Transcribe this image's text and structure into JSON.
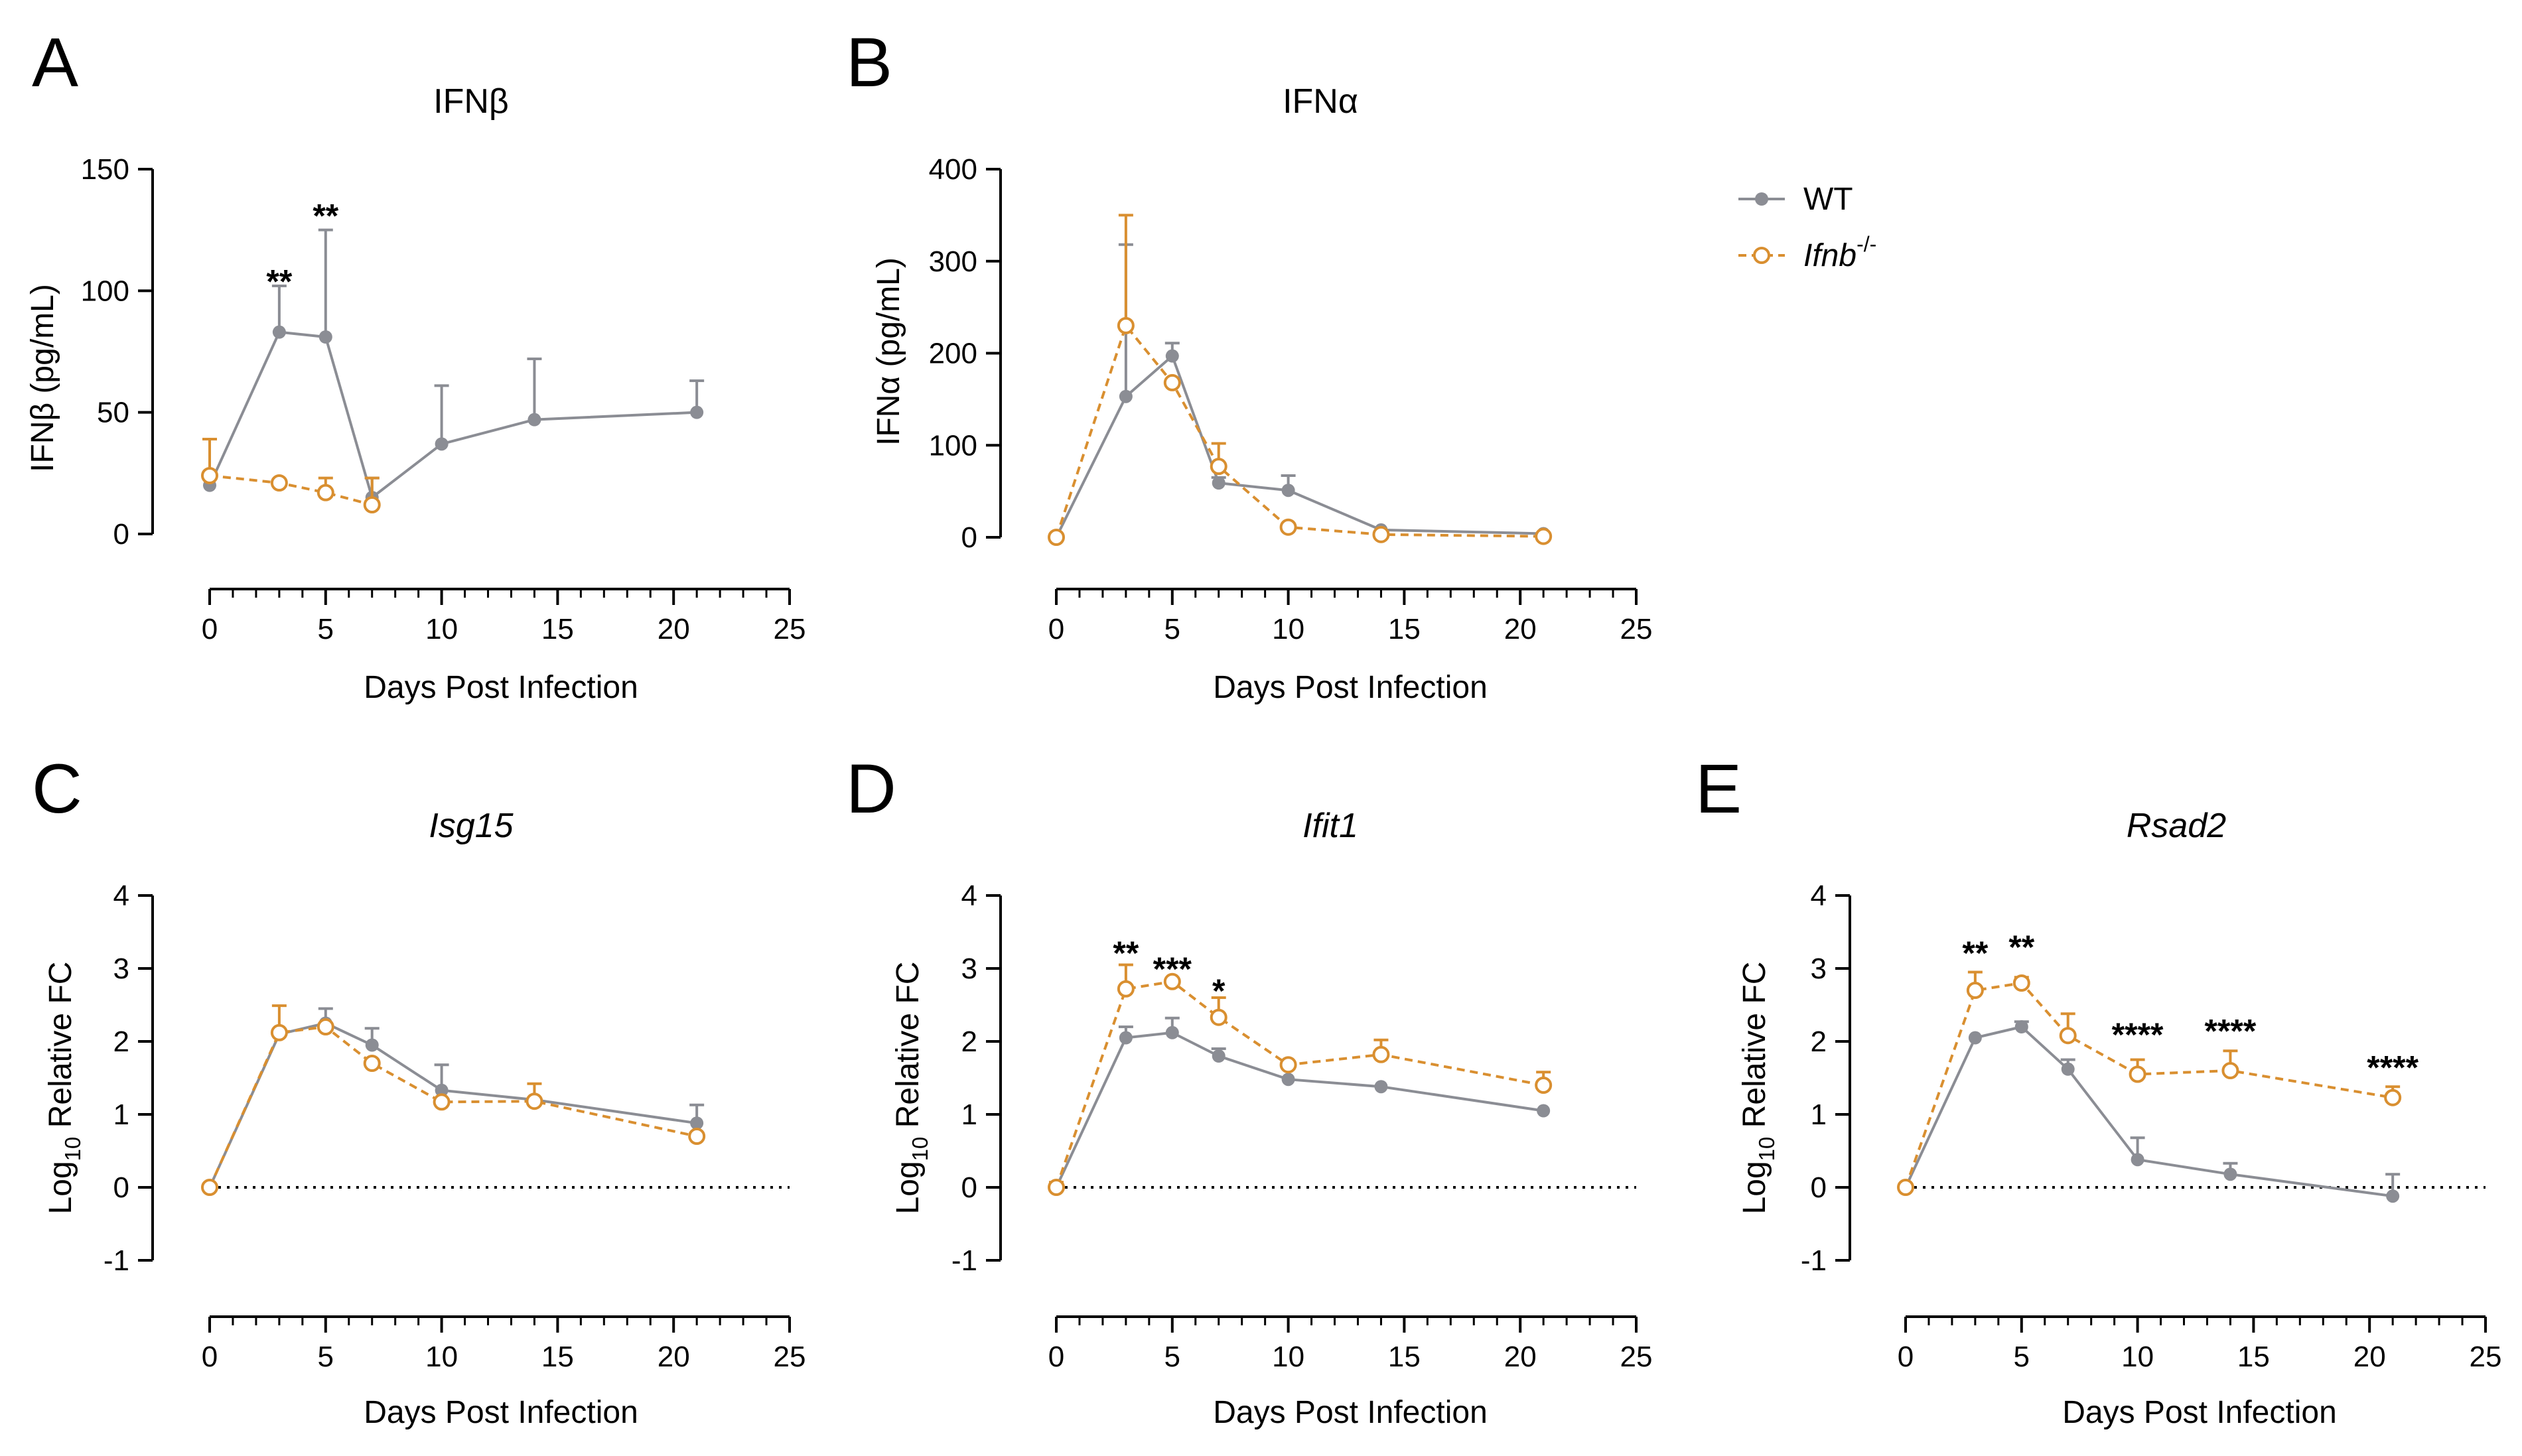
{
  "colors": {
    "wt": "#8b8d94",
    "ko": "#d98f30",
    "axis": "#000000"
  },
  "legend": {
    "wt_label": "WT",
    "ko_gene": "Ifnb",
    "ko_sup": "-/-"
  },
  "chart_data": [
    {
      "type": "line",
      "panel": "A",
      "title": "IFNβ",
      "title_italic": false,
      "xlabel": "Days Post Infection",
      "ylabel": "IFNβ (pg/mL)",
      "xlim": [
        0,
        25
      ],
      "ylim": [
        0,
        150
      ],
      "xticks": [
        0,
        5,
        10,
        15,
        20,
        25
      ],
      "yticks": [
        0,
        50,
        100,
        150
      ],
      "grid": false,
      "series": [
        {
          "name": "WT",
          "key": "wt",
          "x": [
            0,
            3,
            5,
            7,
            10,
            14,
            21
          ],
          "y": [
            20,
            83,
            81,
            15,
            37,
            47,
            50
          ],
          "err": [
            0,
            19,
            44,
            8,
            24,
            25,
            13
          ]
        },
        {
          "name": "Ifnb-/-",
          "key": "ko",
          "x": [
            0,
            3,
            5,
            7
          ],
          "y": [
            24,
            21,
            17,
            12
          ],
          "err": [
            15,
            0,
            6,
            11
          ]
        }
      ],
      "annotations": [
        {
          "x": 3,
          "y": 104,
          "text": "**"
        },
        {
          "x": 5,
          "y": 131,
          "text": "**"
        }
      ]
    },
    {
      "type": "line",
      "panel": "B",
      "title": "IFNα",
      "title_italic": false,
      "xlabel": "Days Post Infection",
      "ylabel": "IFNα (pg/mL)",
      "xlim": [
        0,
        25
      ],
      "ylim": [
        0,
        400
      ],
      "xticks": [
        0,
        5,
        10,
        15,
        20,
        25
      ],
      "yticks": [
        0,
        100,
        200,
        300,
        400
      ],
      "grid": false,
      "series": [
        {
          "name": "WT",
          "key": "wt",
          "x": [
            0,
            3,
            5,
            7,
            10,
            14,
            21
          ],
          "y": [
            0,
            153,
            197,
            59,
            51,
            8,
            4
          ],
          "err": [
            0,
            165,
            14,
            6,
            16,
            0,
            0
          ]
        },
        {
          "name": "Ifnb-/-",
          "key": "ko",
          "x": [
            0,
            3,
            5,
            7,
            10,
            14,
            21
          ],
          "y": [
            0,
            230,
            168,
            77,
            11,
            3,
            1
          ],
          "err": [
            0,
            120,
            0,
            25,
            0,
            0,
            0
          ]
        }
      ],
      "annotations": []
    },
    {
      "type": "line",
      "panel": "C",
      "title": "Isg15",
      "title_italic": true,
      "xlabel": "Days Post Infection",
      "ylabel_base": "Log",
      "ylabel_sub": "10",
      "ylabel_rest": " Relative FC",
      "xlim": [
        0,
        25
      ],
      "ylim": [
        -1,
        4
      ],
      "xticks": [
        0,
        5,
        10,
        15,
        20,
        25
      ],
      "yticks": [
        -1,
        0,
        1,
        2,
        3,
        4
      ],
      "zero_line": true,
      "grid": false,
      "series": [
        {
          "name": "WT",
          "key": "wt",
          "x": [
            0,
            3,
            5,
            7,
            10,
            14,
            21
          ],
          "y": [
            0,
            2.1,
            2.25,
            1.95,
            1.33,
            1.2,
            0.88
          ],
          "err": [
            0,
            0,
            0.2,
            0.23,
            0.35,
            0,
            0.25
          ]
        },
        {
          "name": "Ifnb-/-",
          "key": "ko",
          "x": [
            0,
            3,
            5,
            7,
            10,
            14,
            21
          ],
          "y": [
            0,
            2.12,
            2.2,
            1.7,
            1.17,
            1.18,
            0.7
          ],
          "err": [
            0,
            0.37,
            0,
            0,
            0,
            0.24,
            0
          ]
        }
      ],
      "annotations": []
    },
    {
      "type": "line",
      "panel": "D",
      "title": "Ifit1",
      "title_italic": true,
      "xlabel": "Days Post Infection",
      "ylabel_base": "Log",
      "ylabel_sub": "10",
      "ylabel_rest": " Relative FC",
      "xlim": [
        0,
        25
      ],
      "ylim": [
        -1,
        4
      ],
      "xticks": [
        0,
        5,
        10,
        15,
        20,
        25
      ],
      "yticks": [
        -1,
        0,
        1,
        2,
        3,
        4
      ],
      "zero_line": true,
      "grid": false,
      "series": [
        {
          "name": "WT",
          "key": "wt",
          "x": [
            0,
            3,
            5,
            7,
            10,
            14,
            21
          ],
          "y": [
            0,
            2.05,
            2.12,
            1.8,
            1.48,
            1.38,
            1.05
          ],
          "err": [
            0,
            0.15,
            0.2,
            0.1,
            0,
            0,
            0
          ]
        },
        {
          "name": "Ifnb-/-",
          "key": "ko",
          "x": [
            0,
            3,
            5,
            7,
            10,
            14,
            21
          ],
          "y": [
            0,
            2.72,
            2.82,
            2.33,
            1.68,
            1.82,
            1.4
          ],
          "err": [
            0.07,
            0.33,
            0,
            0.27,
            0,
            0.2,
            0.18
          ]
        }
      ],
      "annotations": [
        {
          "x": 3,
          "y": 3.22,
          "text": "**"
        },
        {
          "x": 5,
          "y": 3.0,
          "text": "***"
        },
        {
          "x": 7,
          "y": 2.7,
          "text": "*"
        }
      ]
    },
    {
      "type": "line",
      "panel": "E",
      "title": "Rsad2",
      "title_italic": true,
      "xlabel": "Days Post Infection",
      "ylabel_base": "Log",
      "ylabel_sub": "10",
      "ylabel_rest": " Relative FC",
      "xlim": [
        0,
        25
      ],
      "ylim": [
        -1,
        4
      ],
      "xticks": [
        0,
        5,
        10,
        15,
        20,
        25
      ],
      "yticks": [
        -1,
        0,
        1,
        2,
        3,
        4
      ],
      "zero_line": true,
      "grid": false,
      "series": [
        {
          "name": "WT",
          "key": "wt",
          "x": [
            0,
            3,
            5,
            7,
            10,
            14,
            21
          ],
          "y": [
            0,
            2.05,
            2.2,
            1.62,
            0.38,
            0.18,
            -0.12
          ],
          "err": [
            0,
            0,
            0.07,
            0.13,
            0.3,
            0.15,
            0.3
          ]
        },
        {
          "name": "Ifnb-/-",
          "key": "ko",
          "x": [
            0,
            3,
            5,
            7,
            10,
            14,
            21
          ],
          "y": [
            0,
            2.7,
            2.8,
            2.08,
            1.55,
            1.6,
            1.23
          ],
          "err": [
            0,
            0.25,
            0.08,
            0.3,
            0.2,
            0.27,
            0.15
          ]
        }
      ],
      "annotations": [
        {
          "x": 3,
          "y": 3.22,
          "text": "**"
        },
        {
          "x": 5,
          "y": 3.3,
          "text": "**"
        },
        {
          "x": 10,
          "y": 2.1,
          "text": "****"
        },
        {
          "x": 14,
          "y": 2.15,
          "text": "****"
        },
        {
          "x": 21,
          "y": 1.65,
          "text": "****"
        }
      ]
    }
  ]
}
